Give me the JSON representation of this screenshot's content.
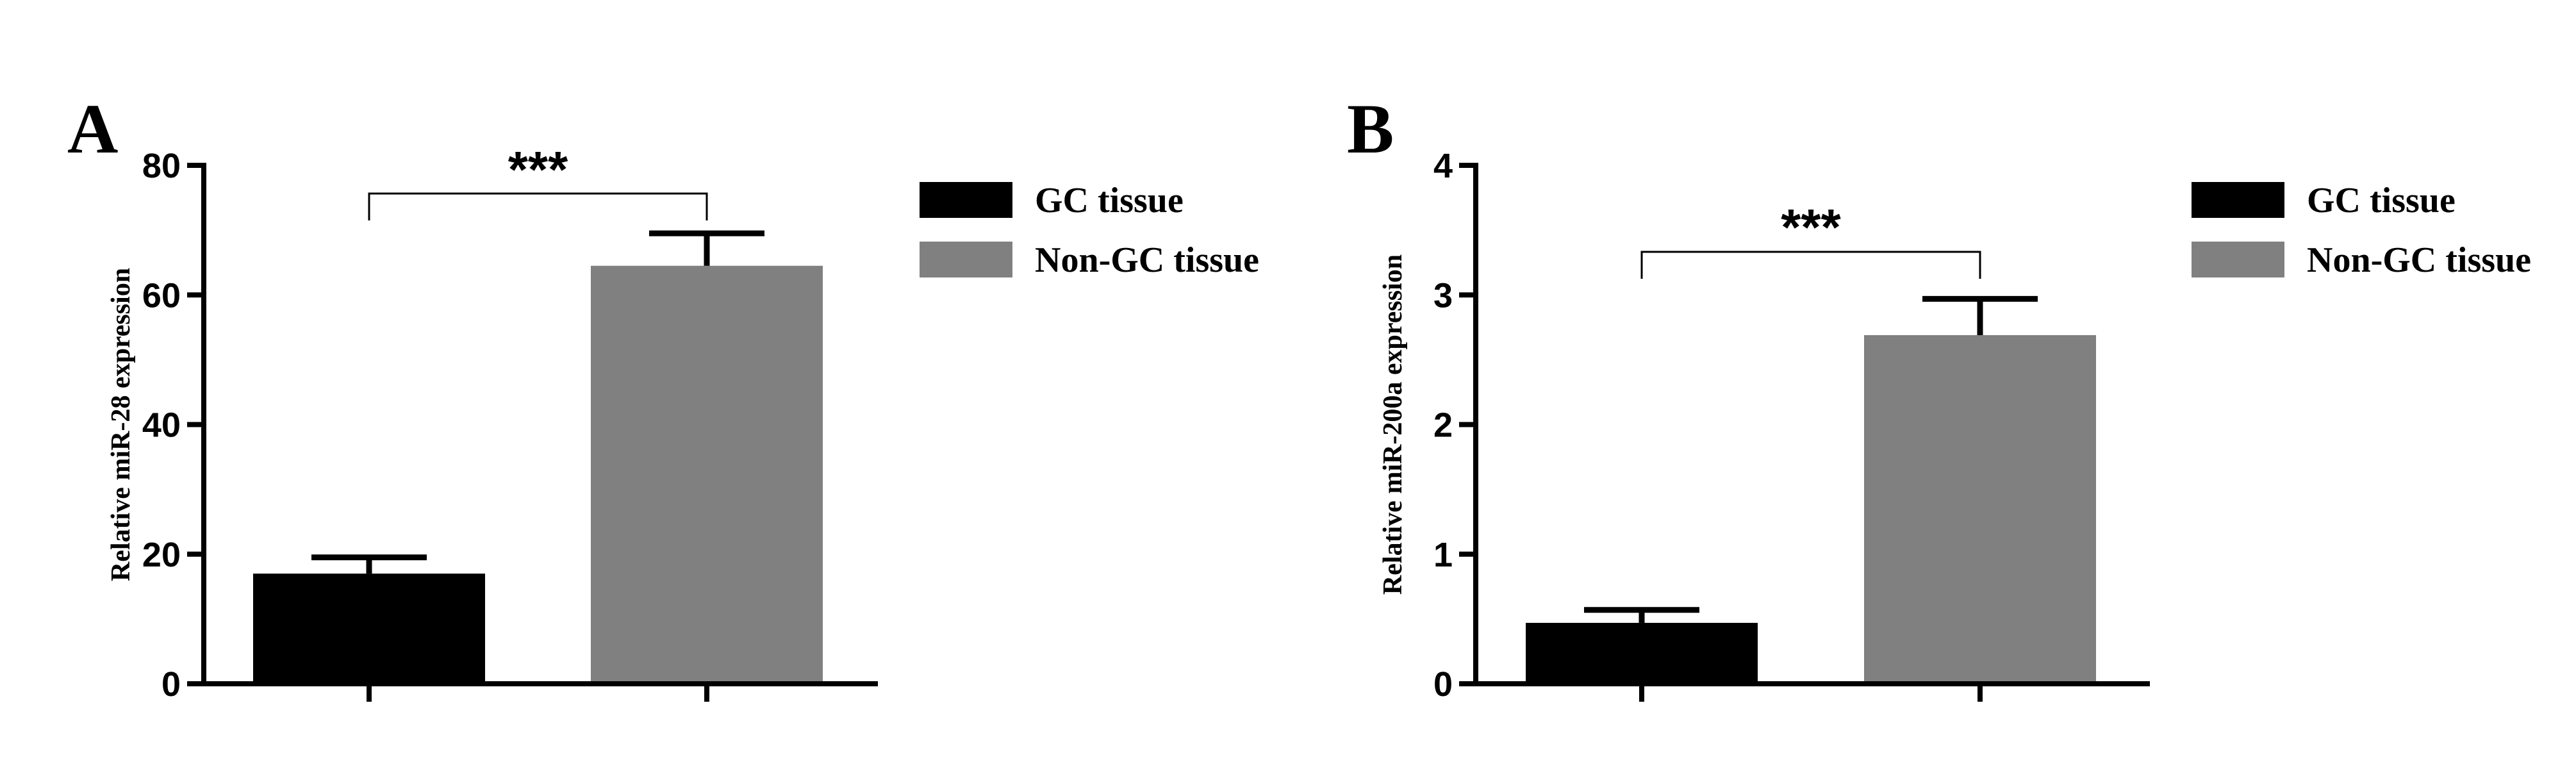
{
  "chart_data": [
    {
      "type": "bar",
      "panel": "A",
      "ylabel": "Relative miR-28 expression",
      "ylim": [
        0,
        80
      ],
      "yticks": [
        0,
        20,
        40,
        60,
        80
      ],
      "categories": [
        "GC tissue",
        "Non-GC tissue"
      ],
      "values": [
        17,
        64.5
      ],
      "errors": [
        2.5,
        5
      ],
      "colors": [
        "#000000",
        "#808080"
      ],
      "significance": "***",
      "legend": [
        "GC tissue",
        "Non-GC tissue"
      ],
      "legend_position": "right"
    },
    {
      "type": "bar",
      "panel": "B",
      "ylabel": "Relative miR-200a expression",
      "ylim": [
        0,
        4
      ],
      "yticks": [
        0,
        1,
        2,
        3,
        4
      ],
      "categories": [
        "GC tissue",
        "Non-GC tissue"
      ],
      "values": [
        0.47,
        2.69
      ],
      "errors": [
        0.1,
        0.28
      ],
      "colors": [
        "#000000",
        "#808080"
      ],
      "significance": "***",
      "legend": [
        "GC tissue",
        "Non-GC tissue"
      ],
      "legend_position": "right"
    }
  ]
}
